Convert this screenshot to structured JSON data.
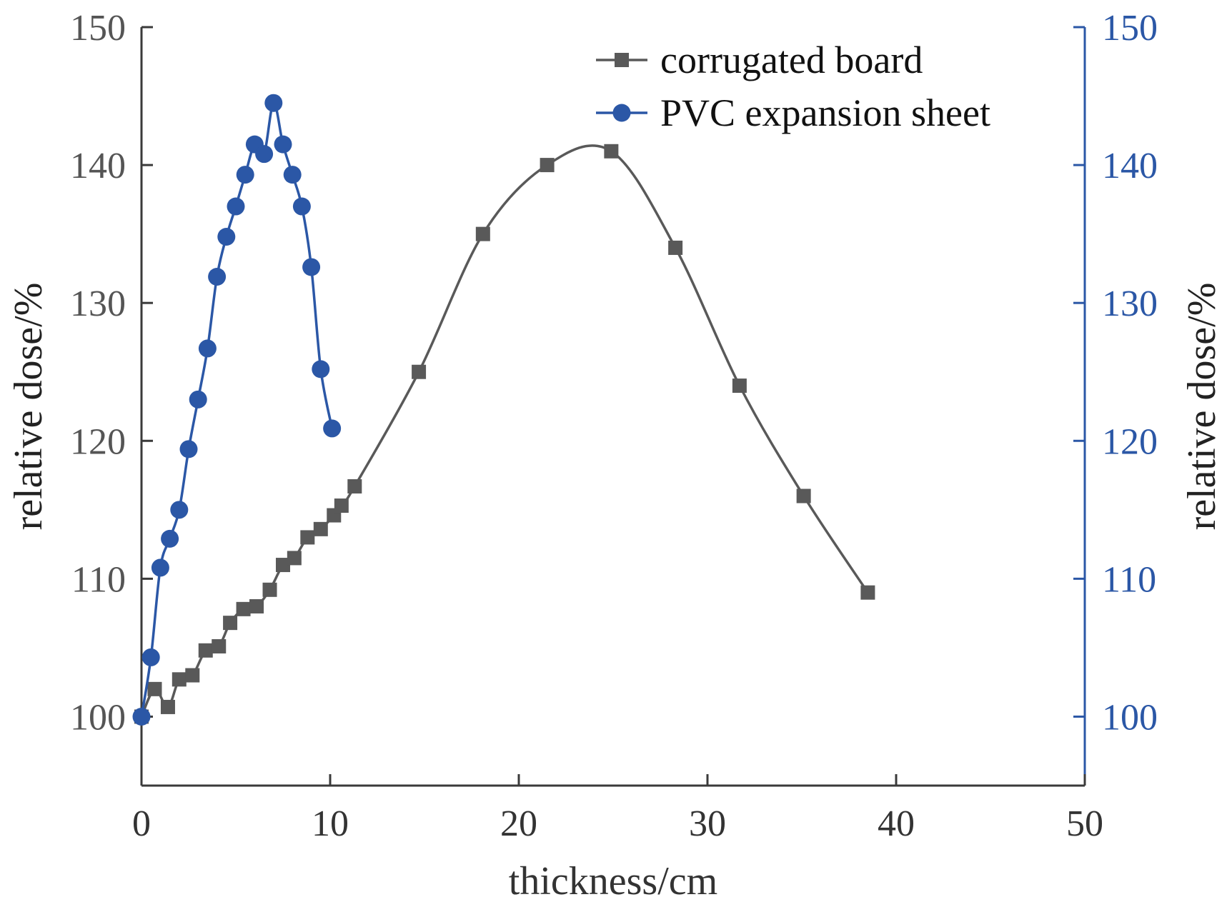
{
  "chart_data": {
    "type": "line",
    "xlabel": "thickness/cm",
    "ylabel_left": "relative dose/%",
    "ylabel_right": "relative dose/%",
    "xlim": [
      0,
      50
    ],
    "ylim_left": [
      95,
      150
    ],
    "ylim_right": [
      95,
      150
    ],
    "x_ticks": [
      "0",
      "10",
      "20",
      "30",
      "40",
      "50"
    ],
    "y_ticks_left": [
      "100",
      "110",
      "120",
      "130",
      "140",
      "150"
    ],
    "y_ticks_right": [
      "100",
      "110",
      "120",
      "130",
      "140",
      "150"
    ],
    "grid": false,
    "legend_position": "top-right",
    "series": [
      {
        "name": "corrugated board",
        "axis": "left",
        "color": "#595959",
        "marker": "square",
        "x": [
          0,
          0.7,
          1.4,
          2.0,
          2.7,
          3.4,
          4.1,
          4.7,
          5.4,
          6.1,
          6.8,
          7.5,
          8.1,
          8.8,
          9.5,
          10.2,
          10.6,
          11.3,
          14.7,
          18.1,
          21.5,
          24.9,
          28.3,
          31.7,
          35.1,
          38.5
        ],
        "values": [
          100,
          102,
          100.7,
          102.7,
          103,
          104.8,
          105.1,
          106.8,
          107.8,
          108,
          109.2,
          111,
          111.5,
          113,
          113.6,
          114.6,
          115.3,
          116.7,
          125,
          135,
          140,
          141,
          134,
          124,
          116,
          109
        ]
      },
      {
        "name": "PVC expansion sheet",
        "axis": "right",
        "color": "#2b57a6",
        "marker": "circle",
        "x": [
          0,
          0.5,
          1.0,
          1.5,
          2.0,
          2.5,
          3.0,
          3.5,
          4.0,
          4.5,
          5.0,
          5.5,
          6.0,
          6.5,
          7.0,
          7.5,
          8.0,
          8.5,
          9.0,
          9.5,
          10.1
        ],
        "values": [
          100,
          104.3,
          110.8,
          112.9,
          115,
          119.4,
          123,
          126.7,
          131.9,
          134.8,
          137,
          139.3,
          141.5,
          140.8,
          144.5,
          141.5,
          139.3,
          137,
          132.6,
          125.2,
          120.9
        ]
      }
    ]
  }
}
